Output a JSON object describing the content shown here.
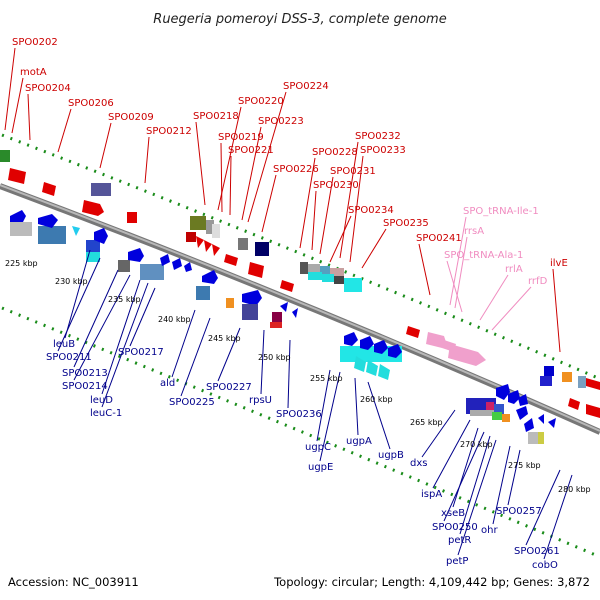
{
  "title": "Ruegeria pomeroyi DSS-3, complete genome",
  "footer": {
    "accession": "Accession: NC_003911",
    "summary": "Topology: circular; Length: 4,109,442 bp; Genes: 3,872"
  },
  "colors": {
    "forward_label": "#cc0000",
    "reverse_label": "#00008b",
    "rna_label": "#f08cc0",
    "backbone": "#8c8c8c",
    "ticks": "#1a8c1a"
  },
  "kbp_ticks": [
    "225 kbp",
    "230 kbp",
    "235 kbp",
    "240 kbp",
    "245 kbp",
    "250 kbp",
    "255 kbp",
    "260 kbp",
    "265 kbp",
    "270 kbp",
    "275 kbp",
    "280 kbp"
  ],
  "top_labels": [
    "SPO0202",
    "motA",
    "SPO0204",
    "SPO0206",
    "SPO0209",
    "SPO0212",
    "SPO0218",
    "SPO0220",
    "SPO0219",
    "SPO0221",
    "SPO0224",
    "SPO0223",
    "SPO0226",
    "SPO0228",
    "SPO0230",
    "SPO0231",
    "SPO0232",
    "SPO0233",
    "SPO0234",
    "SPO0235",
    "SPO0241",
    "ilvE"
  ],
  "rna_labels": [
    "SPO_tRNA-Ile-1",
    "rrsA",
    "SPO_tRNA-Ala-1",
    "rrlA",
    "rrfD"
  ],
  "bottom_labels": [
    "leuB",
    "SPO0211",
    "SPO0213",
    "SPO0214",
    "leuD",
    "leuC-1",
    "SPO0217",
    "ald",
    "SPO0225",
    "SPO0227",
    "rpsU",
    "SPO0236",
    "ugpC",
    "ugpE",
    "ugpA",
    "ugpB",
    "dxs",
    "ispA",
    "xseB",
    "SPO0250",
    "petR",
    "petP",
    "ohr",
    "SPO0257",
    "SPO0261",
    "cobO"
  ]
}
